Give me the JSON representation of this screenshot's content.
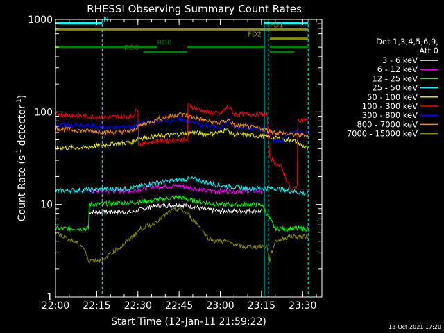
{
  "chart_data": {
    "type": "line",
    "title": "RHESSI Observing Summary Count Rates",
    "xlabel": "Start Time (12-Jan-11 21:59:22)",
    "ylabel_main": "Count Rate (s",
    "ylabel_sup": "-1",
    "ylabel_mid": " detector",
    "ylabel_sup2": "-1",
    "ylabel_end": ")",
    "y_scale": "log",
    "ylim": [
      1,
      1000
    ],
    "xlim_minutes": [
      0,
      97
    ],
    "x_ticks": [
      {
        "label": "22:00",
        "min": 0
      },
      {
        "label": "22:15",
        "min": 15
      },
      {
        "label": "22:30",
        "min": 30
      },
      {
        "label": "22:45",
        "min": 45
      },
      {
        "label": "23:00",
        "min": 60
      },
      {
        "label": "23:15",
        "min": 75
      },
      {
        "label": "23:30",
        "min": 90
      }
    ],
    "y_ticks": [
      {
        "label": "1",
        "v": 1
      },
      {
        "label": "10",
        "v": 10
      },
      {
        "label": "100",
        "v": 100
      },
      {
        "label": "1000",
        "v": 1000
      }
    ],
    "legend_header": [
      "Det 1,3,4,5,6,9,",
      "Att 0"
    ],
    "legend": [
      {
        "label": "3 - 6 keV",
        "color": "#ffffff"
      },
      {
        "label": "6 - 12 keV",
        "color": "#ff00ff"
      },
      {
        "label": "12 - 25 keV",
        "color": "#00ff00"
      },
      {
        "label": "25 - 50 keV",
        "color": "#00ffff"
      },
      {
        "label": "50 - 100 keV",
        "color": "#e6e600"
      },
      {
        "label": "100 - 300 keV",
        "color": "#ff0000"
      },
      {
        "label": "300 - 800 keV",
        "color": "#0000ff"
      },
      {
        "label": "800 - 7000 keV",
        "color": "#ff8c00"
      },
      {
        "label": "7000 - 15000 keV",
        "color": "#8b8b00"
      }
    ],
    "series": [
      {
        "color": "#ffffff",
        "points": [
          [
            12,
            8.3
          ],
          [
            28,
            8.3
          ],
          [
            35,
            9.5
          ],
          [
            45,
            10
          ],
          [
            50,
            9.5
          ],
          [
            55,
            8.8
          ],
          [
            60,
            8.5
          ],
          [
            75,
            8.5
          ]
        ]
      },
      {
        "color": "#ff00ff",
        "points": [
          [
            12,
            14
          ],
          [
            28,
            14
          ],
          [
            35,
            15.5
          ],
          [
            45,
            16
          ],
          [
            50,
            15
          ],
          [
            55,
            14
          ],
          [
            60,
            14
          ],
          [
            75,
            14
          ]
        ]
      },
      {
        "color": "#00ff00",
        "points": [
          [
            0,
            5.5
          ],
          [
            12,
            5.5
          ],
          [
            12.2,
            10
          ],
          [
            28,
            10.5
          ],
          [
            35,
            11
          ],
          [
            45,
            12
          ],
          [
            50,
            11
          ],
          [
            60,
            10
          ],
          [
            75,
            10
          ],
          [
            80,
            5.5
          ],
          [
            92,
            5.5
          ]
        ]
      },
      {
        "color": "#00ffff",
        "points": [
          [
            0,
            14
          ],
          [
            28,
            15
          ],
          [
            35,
            17
          ],
          [
            45,
            18.5
          ],
          [
            50,
            19
          ],
          [
            60,
            16
          ],
          [
            70,
            15
          ],
          [
            80,
            15
          ],
          [
            92,
            13
          ]
        ]
      },
      {
        "color": "#e6e600",
        "points": [
          [
            0,
            41
          ],
          [
            10,
            41
          ],
          [
            20,
            45
          ],
          [
            28,
            47
          ],
          [
            30,
            52
          ],
          [
            38,
            55
          ],
          [
            45,
            58
          ],
          [
            50,
            60
          ],
          [
            55,
            58
          ],
          [
            60,
            60
          ],
          [
            62,
            66
          ],
          [
            64,
            58
          ],
          [
            70,
            56
          ],
          [
            75,
            55
          ],
          [
            80,
            52
          ],
          [
            86,
            50
          ],
          [
            92,
            40
          ]
        ]
      },
      {
        "color": "#ff0000",
        "points": [
          [
            0,
            95
          ],
          [
            5,
            93
          ],
          [
            10,
            90
          ],
          [
            20,
            88
          ],
          [
            28,
            90
          ],
          [
            30,
            110
          ],
          [
            30.2,
            45
          ],
          [
            38,
            49
          ],
          [
            45,
            50
          ],
          [
            48,
            50
          ],
          [
            48.2,
            118
          ],
          [
            55,
            100
          ],
          [
            60,
            96
          ],
          [
            63,
            115
          ],
          [
            65,
            95
          ],
          [
            75,
            95
          ],
          [
            77,
            93
          ],
          [
            78,
            33
          ],
          [
            80,
            28
          ],
          [
            82,
            26
          ],
          [
            86,
            14
          ],
          [
            88,
            16
          ],
          [
            88.2,
            82
          ],
          [
            92,
            82
          ]
        ]
      },
      {
        "color": "#0000ff",
        "points": [
          [
            0,
            73
          ],
          [
            10,
            71
          ],
          [
            20,
            68
          ],
          [
            28,
            70
          ],
          [
            30,
            75
          ],
          [
            38,
            80
          ],
          [
            45,
            83
          ],
          [
            48,
            80
          ],
          [
            55,
            70
          ],
          [
            60,
            70
          ],
          [
            63,
            82
          ],
          [
            65,
            68
          ],
          [
            75,
            66
          ],
          [
            77,
            62
          ],
          [
            79,
            50
          ],
          [
            83,
            49
          ],
          [
            84,
            58
          ],
          [
            88,
            60
          ],
          [
            92,
            60
          ]
        ]
      },
      {
        "color": "#ff8c00",
        "points": [
          [
            0,
            66
          ],
          [
            10,
            63
          ],
          [
            20,
            60
          ],
          [
            28,
            62
          ],
          [
            30,
            70
          ],
          [
            38,
            85
          ],
          [
            45,
            95
          ],
          [
            50,
            88
          ],
          [
            55,
            80
          ],
          [
            60,
            76
          ],
          [
            63,
            82
          ],
          [
            65,
            72
          ],
          [
            75,
            66
          ],
          [
            80,
            60
          ],
          [
            85,
            58
          ],
          [
            88,
            56
          ],
          [
            92,
            56
          ]
        ]
      },
      {
        "color": "#8b8b00",
        "points": [
          [
            0,
            5
          ],
          [
            10,
            3.5
          ],
          [
            12,
            2.5
          ],
          [
            18,
            2.5
          ],
          [
            20,
            3
          ],
          [
            24,
            3.5
          ],
          [
            28,
            4.5
          ],
          [
            31,
            5.5
          ],
          [
            35,
            6
          ],
          [
            38,
            7
          ],
          [
            42,
            8.5
          ],
          [
            45,
            9
          ],
          [
            48,
            8
          ],
          [
            52,
            6
          ],
          [
            55,
            4.5
          ],
          [
            58,
            4
          ],
          [
            62,
            4
          ],
          [
            68,
            3.5
          ],
          [
            72,
            3.5
          ],
          [
            77,
            3.5
          ],
          [
            78,
            2.5
          ],
          [
            80,
            4
          ],
          [
            85,
            4.5
          ],
          [
            92,
            4.5
          ]
        ]
      }
    ],
    "flags": [
      {
        "name": "N",
        "color": "#00ffff",
        "level": 910,
        "segments": [
          [
            0,
            17
          ],
          [
            76,
            92
          ]
        ],
        "label": "N",
        "label_at": 17.5
      },
      {
        "name": "FD1",
        "color": "#8b8b00",
        "level": 780,
        "segments": [
          [
            0,
            92
          ]
        ],
        "label": "FD1",
        "label_at": 78
      },
      {
        "name": "FD2",
        "color": "#8b8b00",
        "level": 620,
        "segments": [
          [
            78,
            92
          ]
        ],
        "label": "FD2",
        "label_at": 70
      },
      {
        "name": "RD0",
        "color": "#008000",
        "level": 505,
        "segments": [
          [
            0,
            37
          ],
          [
            48,
            76
          ],
          [
            78,
            92
          ]
        ],
        "label": "RD0",
        "label_at": 37
      },
      {
        "name": "RD6",
        "color": "#008000",
        "level": 445,
        "segments": [
          [
            32,
            48
          ],
          [
            78,
            87
          ]
        ],
        "label": "RD6",
        "label_at": 25
      }
    ],
    "vertical_markers": [
      {
        "min": 17,
        "style": "dashed"
      },
      {
        "min": 76,
        "style": "solid"
      },
      {
        "min": 77.5,
        "style": "dashed"
      },
      {
        "min": 92,
        "style": "dashed"
      }
    ],
    "footer_date": "13-Oct-2021 17:20"
  }
}
